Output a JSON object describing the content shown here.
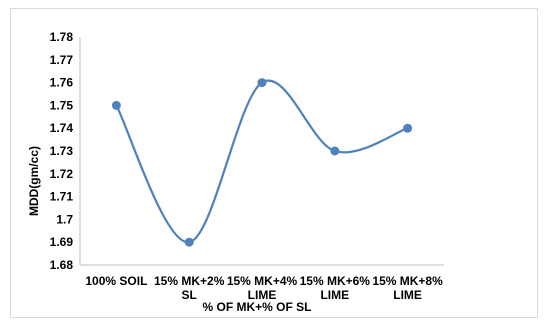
{
  "chart_data": {
    "type": "line",
    "categories": [
      [
        "100% SOIL"
      ],
      [
        "15% MK+2%",
        "SL"
      ],
      [
        "15% MK+4%",
        "LIME"
      ],
      [
        "15% MK+6%",
        "LIME"
      ],
      [
        "15% MK+8%",
        "LIME"
      ]
    ],
    "series": [
      {
        "values": [
          1.75,
          1.69,
          1.76,
          1.73,
          1.74
        ]
      }
    ],
    "xlabel": "% OF MK+% OF SL",
    "ylabel": "MDD(gm/cc)",
    "ylim": [
      1.68,
      1.78
    ],
    "yticks": [
      "1.78",
      "1.77",
      "1.76",
      "1.75",
      "1.74",
      "1.73",
      "1.72",
      "1.71",
      "1.7",
      "1.69",
      "1.68"
    ],
    "smooth": true,
    "grid": false,
    "legend": "none",
    "colors": {
      "line": "#4f81bd",
      "marker": "#4f81bd",
      "axis": "#bfbfbf"
    }
  }
}
